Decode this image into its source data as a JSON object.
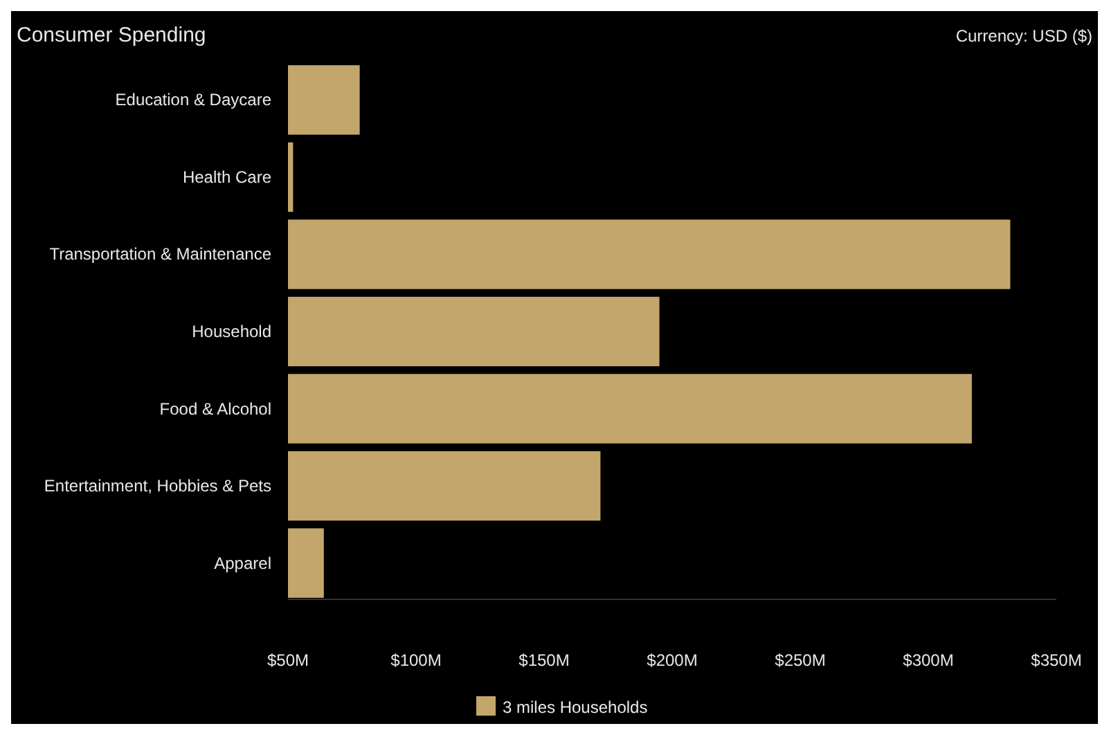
{
  "chart_data": {
    "type": "bar",
    "title": "Consumer Spending",
    "annotations": [
      "Currency: USD ($)"
    ],
    "orientation": "horizontal",
    "categories": [
      "Education & Daycare",
      "Health Care",
      "Transportation & Maintenance",
      "Household",
      "Food & Alcohol",
      "Entertainment, Hobbies & Pets",
      "Apparel"
    ],
    "series": [
      {
        "name": "3 miles Households",
        "color": "#c2a66b",
        "values": [
          78,
          52,
          332,
          195,
          317,
          172,
          64
        ]
      }
    ],
    "xlim": [
      50,
      350
    ],
    "xticks": [
      {
        "value": 50,
        "label": "$50M"
      },
      {
        "value": 100,
        "label": "$100M"
      },
      {
        "value": 150,
        "label": "$150M"
      },
      {
        "value": 200,
        "label": "$200M"
      },
      {
        "value": 250,
        "label": "$250M"
      },
      {
        "value": 300,
        "label": "$300M"
      },
      {
        "value": 350,
        "label": "$350M"
      }
    ],
    "legend": "bottom"
  }
}
